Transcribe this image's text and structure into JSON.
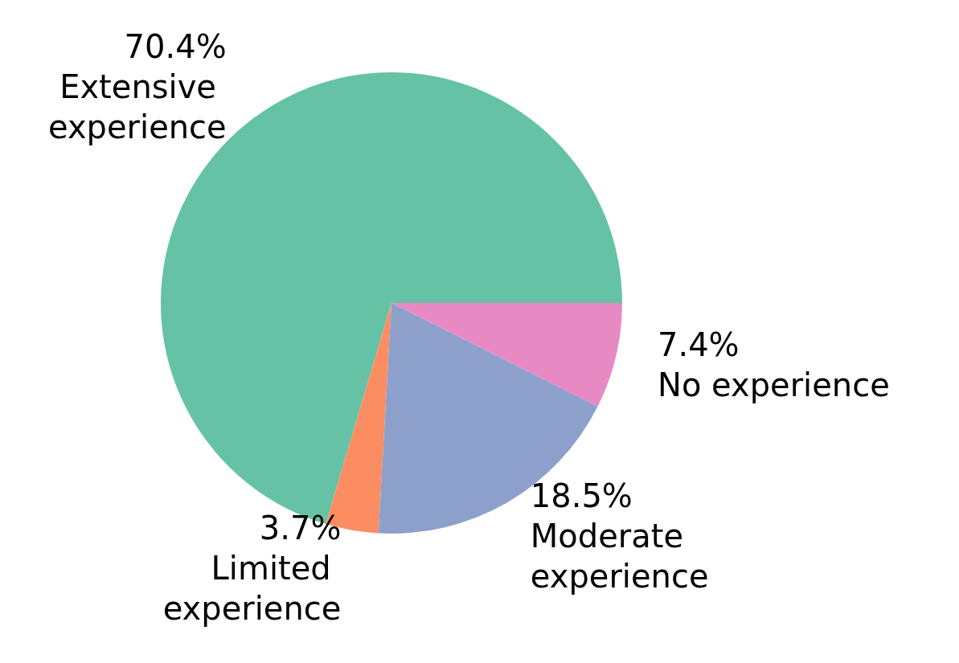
{
  "chart_data": {
    "type": "pie",
    "categories": [
      "Extensive experience",
      "Limited experience",
      "Moderate experience",
      "No experience"
    ],
    "values": [
      70.4,
      3.7,
      18.5,
      7.4
    ],
    "value_labels": [
      "70.4%",
      "3.7%",
      "18.5%",
      "7.4%"
    ],
    "colors": [
      "#66c2a5",
      "#fc8d62",
      "#8da0cb",
      "#e78ac3"
    ],
    "legend": false
  }
}
